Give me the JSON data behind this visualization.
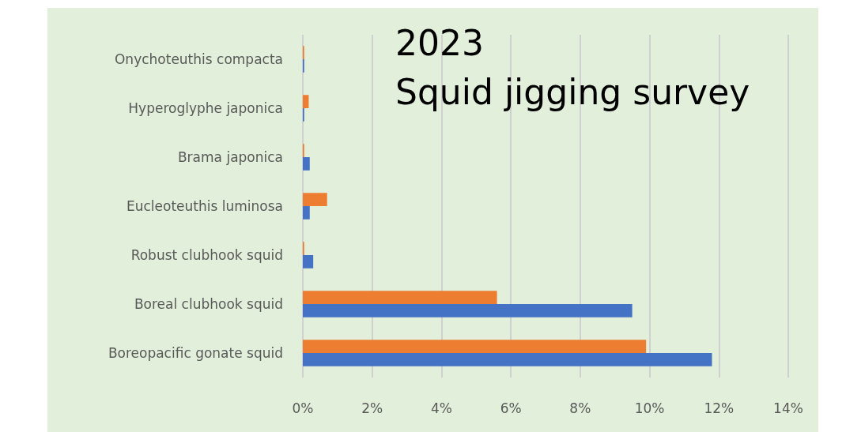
{
  "chart_data": {
    "type": "bar",
    "orientation": "horizontal",
    "title": "2023\nSquid jigging survey",
    "categories": [
      "Onychoteuthis compacta",
      "Hyperoglyphe japonica",
      "Brama japonica",
      "Eucleoteuthis luminosa",
      "Robust clubhook squid",
      "Boreal clubhook squid",
      "Boreopacific gonate squid"
    ],
    "series": [
      {
        "color": "#ed7d31",
        "values": [
          0.04,
          0.17,
          0.04,
          0.7,
          0.04,
          5.6,
          9.9
        ]
      },
      {
        "color": "#4472c4",
        "values": [
          0.04,
          0.04,
          0.2,
          0.2,
          0.3,
          9.5,
          11.8
        ]
      }
    ],
    "xlim": [
      0,
      14
    ],
    "xticks": [
      {
        "value": 0,
        "label": "0%"
      },
      {
        "value": 2,
        "label": "2%"
      },
      {
        "value": 4,
        "label": "4%"
      },
      {
        "value": 6,
        "label": "6%"
      },
      {
        "value": 8,
        "label": "8%"
      },
      {
        "value": 10,
        "label": "10%"
      },
      {
        "value": 12,
        "label": "12%"
      },
      {
        "value": 14,
        "label": "14%"
      }
    ],
    "grid": "x"
  }
}
